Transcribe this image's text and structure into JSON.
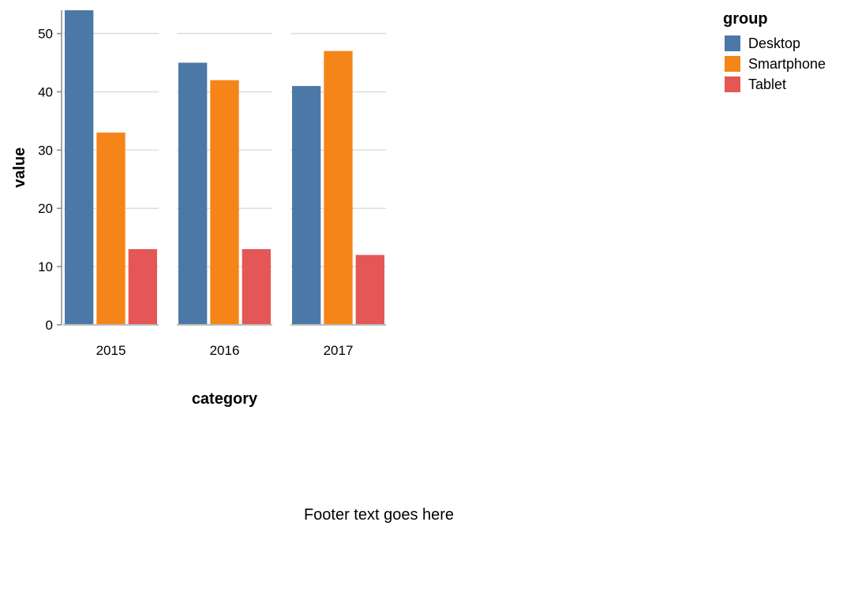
{
  "chart_data": {
    "type": "bar",
    "layout": "grouped-faceted",
    "categories": [
      "2015",
      "2016",
      "2017"
    ],
    "series": [
      {
        "name": "Desktop",
        "color": "#4c78a8",
        "values": [
          54,
          45,
          41
        ]
      },
      {
        "name": "Smartphone",
        "color": "#f58518",
        "values": [
          33,
          42,
          47
        ]
      },
      {
        "name": "Tablet",
        "color": "#e45756",
        "values": [
          13,
          13,
          12
        ]
      }
    ],
    "xlabel": "category",
    "ylabel": "value",
    "ylim": [
      0,
      54
    ],
    "yticks": [
      0,
      10,
      20,
      30,
      40,
      50
    ],
    "grid": true,
    "legend": {
      "title": "group",
      "position": "top-right"
    }
  },
  "footer": {
    "text": "Footer text goes here"
  }
}
